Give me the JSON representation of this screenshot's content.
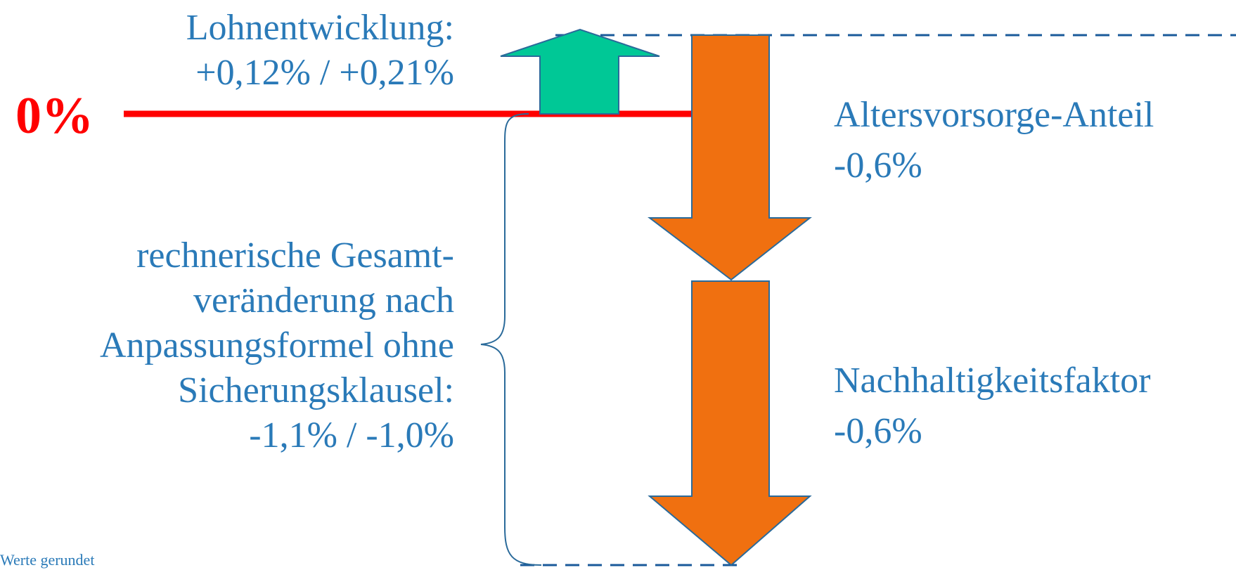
{
  "zero_label": "0%",
  "lohn": {
    "title": "Lohnentwicklung:",
    "value": "+0,12% / +0,21%"
  },
  "altersvorsorge": {
    "title": "Altersvorsorge-Anteil",
    "value": "-0,6%"
  },
  "nachhaltigkeit": {
    "title": "Nachhaltigkeitsfaktor",
    "value": "-0,6%"
  },
  "gesamt": {
    "lines": [
      "rechnerische Gesamt-",
      "veränderung nach",
      "Anpassungsformel ohne",
      "Sicherungsklausel:",
      "-1,1% / -1,0%"
    ]
  },
  "footnote": "Werte gerundet",
  "colors": {
    "text": "#2a7ab8",
    "baseline": "#ff0000",
    "up_arrow": "#00c896",
    "down_arrow": "#f07010",
    "arrow_outline": "#2a6a9a",
    "dashed": "#1a5a9a"
  }
}
